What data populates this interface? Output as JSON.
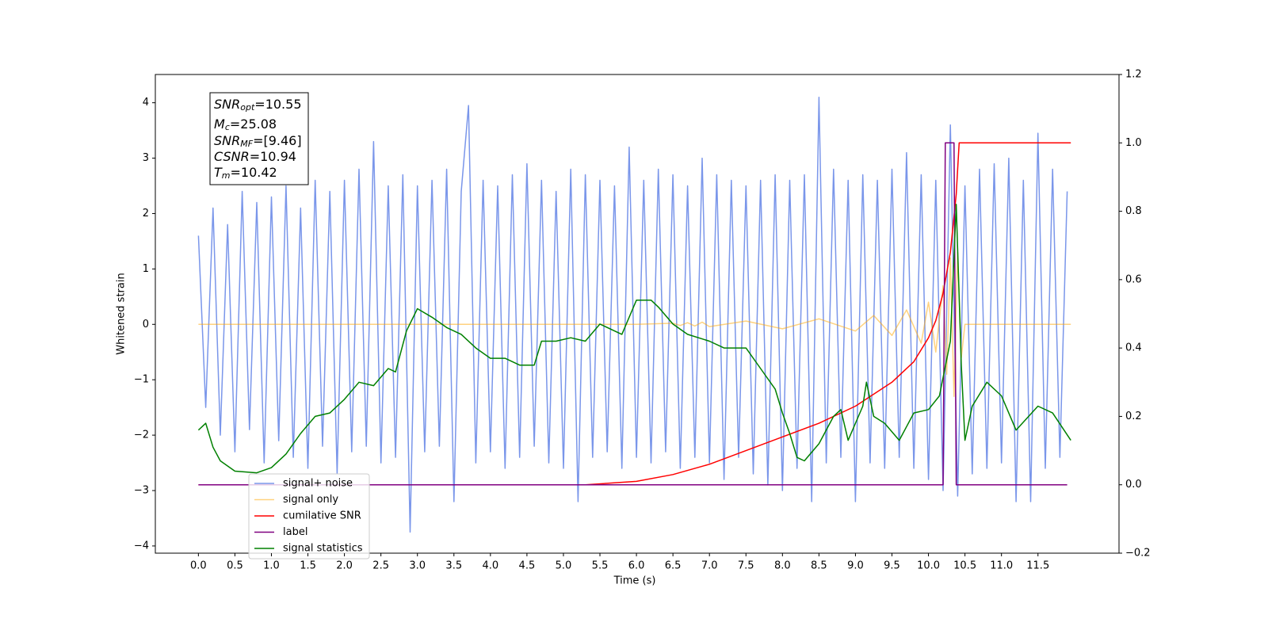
{
  "chart_data": {
    "type": "line",
    "xlabel": "Time (s)",
    "ylabel": "Whitened strain",
    "xlim": [
      -0.59,
      12.61
    ],
    "ylim": [
      -4.13,
      4.51
    ],
    "y2lim": [
      -0.2,
      1.2
    ],
    "xticks": [
      {
        "value": 0,
        "label": "0.0"
      },
      {
        "value": 0.5,
        "label": "0.5"
      },
      {
        "value": 1,
        "label": "1.0"
      },
      {
        "value": 1.5,
        "label": "1.5"
      },
      {
        "value": 2,
        "label": "2.0"
      },
      {
        "value": 2.5,
        "label": "2.5"
      },
      {
        "value": 3,
        "label": "3.0"
      },
      {
        "value": 3.5,
        "label": "3.5"
      },
      {
        "value": 4,
        "label": "4.0"
      },
      {
        "value": 4.5,
        "label": "4.5"
      },
      {
        "value": 5,
        "label": "5.0"
      },
      {
        "value": 5.5,
        "label": "5.5"
      },
      {
        "value": 6,
        "label": "6.0"
      },
      {
        "value": 6.5,
        "label": "6.5"
      },
      {
        "value": 7,
        "label": "7.0"
      },
      {
        "value": 7.5,
        "label": "7.5"
      },
      {
        "value": 8,
        "label": "8.0"
      },
      {
        "value": 8.5,
        "label": "8.5"
      },
      {
        "value": 9,
        "label": "9.0"
      },
      {
        "value": 9.5,
        "label": "9.5"
      },
      {
        "value": 10,
        "label": "10.0"
      },
      {
        "value": 10.5,
        "label": "10.5"
      },
      {
        "value": 11,
        "label": "11.0"
      },
      {
        "value": 11.5,
        "label": "11.5"
      }
    ],
    "yticks": [
      {
        "value": -4,
        "label": "−4"
      },
      {
        "value": -3,
        "label": "−3"
      },
      {
        "value": -2,
        "label": "−2"
      },
      {
        "value": -1,
        "label": "−1"
      },
      0,
      1,
      2,
      3,
      4
    ],
    "y2ticks": [
      {
        "value": -0.2,
        "label": "−0.2"
      },
      {
        "value": 0,
        "label": "0.0"
      },
      0.2,
      0.4,
      0.6,
      0.8,
      {
        "value": 1,
        "label": "1.0"
      },
      1.2
    ],
    "legend": "lower left",
    "annotation": [
      [
        "SNR",
        "opt",
        "=10.55"
      ],
      [
        "M",
        "c",
        "=25.08"
      ],
      [
        "SNR",
        "MF",
        "=[9.46]"
      ],
      [
        "CSNR",
        "",
        "=10.94"
      ],
      [
        "T",
        "m",
        "=10.42"
      ]
    ],
    "series": [
      {
        "name": "signal+ noise",
        "color": "#4169e1",
        "x": [
          0,
          0.1,
          0.2,
          0.3,
          0.4,
          0.5,
          0.6,
          0.7,
          0.8,
          0.9,
          1,
          1.1,
          1.2,
          1.3,
          1.4,
          1.5,
          1.6,
          1.7,
          1.8,
          1.9,
          2,
          2.1,
          2.2,
          2.3,
          2.4,
          2.5,
          2.6,
          2.7,
          2.8,
          2.9,
          3,
          3.1,
          3.2,
          3.3,
          3.4,
          3.5,
          3.6,
          3.7,
          3.8,
          3.9,
          4,
          4.1,
          4.2,
          4.3,
          4.4,
          4.5,
          4.6,
          4.7,
          4.8,
          4.9,
          5,
          5.1,
          5.2,
          5.3,
          5.4,
          5.5,
          5.6,
          5.7,
          5.8,
          5.9,
          6,
          6.1,
          6.2,
          6.3,
          6.4,
          6.5,
          6.6,
          6.7,
          6.8,
          6.9,
          7,
          7.1,
          7.2,
          7.3,
          7.4,
          7.5,
          7.6,
          7.7,
          7.8,
          7.9,
          8,
          8.1,
          8.2,
          8.3,
          8.4,
          8.5,
          8.6,
          8.7,
          8.8,
          8.9,
          9,
          9.1,
          9.2,
          9.3,
          9.4,
          9.5,
          9.6,
          9.7,
          9.8,
          9.9,
          10,
          10.1,
          10.2,
          10.3,
          10.4,
          10.5,
          10.6,
          10.7,
          10.8,
          10.9,
          11,
          11.1,
          11.2,
          11.3,
          11.4,
          11.5,
          11.6,
          11.7,
          11.8,
          11.9
        ],
        "values": [
          1.6,
          -1.5,
          2.1,
          -2.0,
          1.8,
          -2.3,
          2.4,
          -1.9,
          2.2,
          -2.5,
          2.3,
          -2.1,
          2.5,
          -2.4,
          2.1,
          -2.6,
          2.6,
          -2.2,
          2.4,
          -2.7,
          2.6,
          -2.3,
          2.8,
          -2.2,
          3.3,
          -2.5,
          2.5,
          -2.4,
          2.7,
          -3.75,
          2.5,
          -2.3,
          2.6,
          -2.2,
          2.8,
          -3.2,
          2.4,
          3.95,
          -2.5,
          2.6,
          -2.3,
          2.5,
          -2.6,
          2.7,
          -2.4,
          2.9,
          -2.2,
          2.6,
          -2.5,
          2.4,
          -2.6,
          2.8,
          -3.2,
          2.7,
          -2.4,
          2.6,
          -2.3,
          2.5,
          -2.6,
          3.2,
          -2.4,
          2.6,
          -2.5,
          2.8,
          -2.3,
          2.7,
          -2.6,
          2.5,
          -2.4,
          3.0,
          -2.5,
          2.7,
          -2.8,
          2.6,
          -2.4,
          2.5,
          -2.7,
          2.6,
          -2.9,
          2.7,
          -3.0,
          2.6,
          -2.6,
          2.7,
          -3.2,
          4.1,
          -2.5,
          2.8,
          -2.4,
          2.6,
          -3.2,
          2.7,
          -2.5,
          2.6,
          -2.6,
          2.8,
          -2.4,
          3.1,
          -2.6,
          2.7,
          -2.8,
          2.6,
          -3.0,
          3.6,
          -3.1,
          2.5,
          -2.7,
          2.8,
          -2.6,
          2.9,
          -2.5,
          3.0,
          -3.2,
          2.6,
          -3.2,
          3.45,
          -2.6,
          2.8,
          -2.4,
          2.4
        ]
      },
      {
        "name": "signal only",
        "color": "#ffa500",
        "x": [
          0,
          0.5,
          1,
          1.5,
          2,
          2.5,
          3,
          3.5,
          4,
          4.5,
          5,
          5.5,
          6,
          6.5,
          6.6,
          6.7,
          6.8,
          6.9,
          7,
          7.5,
          8,
          8.5,
          9,
          9.25,
          9.5,
          9.7,
          9.9,
          10,
          10.1,
          10.2,
          10.25,
          10.3,
          10.35,
          10.4,
          10.45,
          10.5,
          11,
          11.5,
          11.95
        ],
        "values": [
          0,
          0,
          0,
          0,
          0,
          0,
          0,
          0,
          0,
          0,
          0,
          0,
          0,
          0.02,
          -0.02,
          0.03,
          -0.03,
          0.04,
          -0.04,
          0.06,
          -0.08,
          0.1,
          -0.12,
          0.16,
          -0.2,
          0.26,
          -0.34,
          0.4,
          -0.5,
          0.7,
          -0.9,
          1.2,
          -1.3,
          1.3,
          -0.6,
          0,
          0,
          0,
          0
        ]
      },
      {
        "name": "cumilative SNR",
        "color": "#ff0000",
        "axis": "y2",
        "x": [
          0,
          5.3,
          6,
          6.5,
          7,
          7.5,
          8,
          8.5,
          9,
          9.5,
          9.8,
          10,
          10.1,
          10.2,
          10.3,
          10.38,
          10.42,
          11.95
        ],
        "values": [
          0,
          0,
          0.01,
          0.03,
          0.06,
          0.1,
          0.14,
          0.18,
          0.23,
          0.3,
          0.36,
          0.43,
          0.48,
          0.56,
          0.68,
          0.85,
          1,
          1
        ]
      },
      {
        "name": "label",
        "color": "#800080",
        "axis": "y2",
        "x": [
          0,
          10.2,
          10.23,
          10.35,
          10.38,
          11.9
        ],
        "values": [
          0,
          0,
          1,
          1,
          0,
          0
        ]
      },
      {
        "name": "signal statistics",
        "color": "#008000",
        "axis": "y2",
        "x": [
          0,
          0.1,
          0.2,
          0.3,
          0.5,
          0.8,
          1,
          1.2,
          1.4,
          1.6,
          1.8,
          2,
          2.2,
          2.4,
          2.6,
          2.7,
          2.85,
          3,
          3.2,
          3.4,
          3.6,
          3.8,
          4,
          4.2,
          4.4,
          4.6,
          4.7,
          4.9,
          5.1,
          5.3,
          5.5,
          5.8,
          6,
          6.2,
          6.3,
          6.5,
          6.7,
          7,
          7.2,
          7.5,
          7.7,
          7.9,
          8,
          8.1,
          8.2,
          8.3,
          8.5,
          8.7,
          8.8,
          8.9,
          9.1,
          9.15,
          9.25,
          9.4,
          9.6,
          9.8,
          10,
          10.15,
          10.3,
          10.38,
          10.45,
          10.5,
          10.6,
          10.8,
          11,
          11.2,
          11.5,
          11.7,
          11.95
        ],
        "values": [
          0.16,
          0.18,
          0.11,
          0.07,
          0.04,
          0.035,
          0.05,
          0.09,
          0.15,
          0.2,
          0.21,
          0.25,
          0.3,
          0.29,
          0.34,
          0.33,
          0.45,
          0.515,
          0.49,
          0.46,
          0.44,
          0.4,
          0.37,
          0.37,
          0.35,
          0.35,
          0.42,
          0.42,
          0.43,
          0.42,
          0.47,
          0.44,
          0.54,
          0.54,
          0.52,
          0.47,
          0.44,
          0.42,
          0.4,
          0.4,
          0.34,
          0.28,
          0.21,
          0.15,
          0.08,
          0.07,
          0.12,
          0.2,
          0.22,
          0.13,
          0.23,
          0.3,
          0.2,
          0.18,
          0.13,
          0.21,
          0.22,
          0.26,
          0.42,
          0.82,
          0.35,
          0.13,
          0.23,
          0.3,
          0.26,
          0.16,
          0.23,
          0.21,
          0.13
        ]
      }
    ]
  }
}
